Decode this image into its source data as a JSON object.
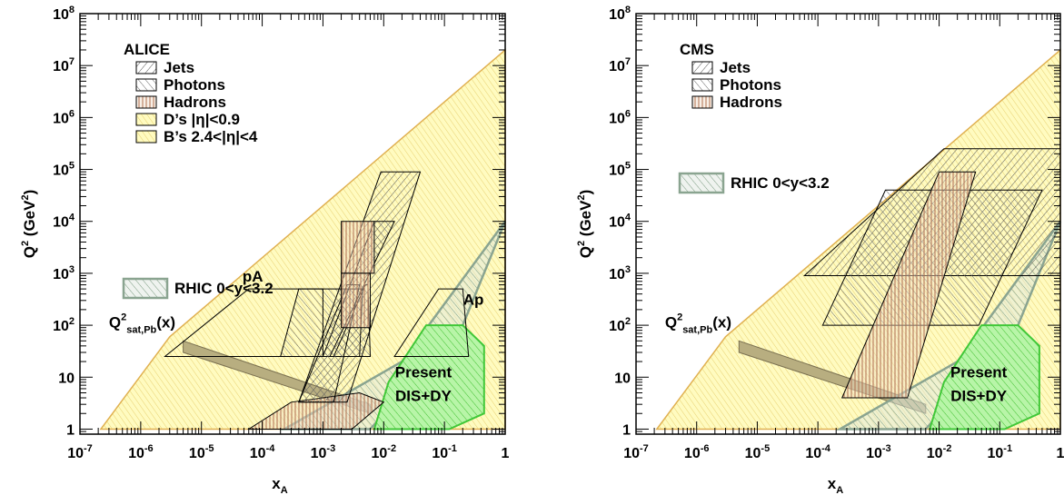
{
  "chart_data": [
    {
      "type": "area",
      "panel": "left",
      "xlabel": "x",
      "xlabel_sub": "A",
      "ylabel": "Q",
      "ylabel_sup": "2",
      "ylabel_unit": "(GeV",
      "ylabel_unit_sup": "2",
      "ylabel_unit_close": ")",
      "x_scale": "log",
      "y_scale": "log",
      "xlim": [
        1e-07,
        1
      ],
      "ylim": [
        0.8,
        100000000.0
      ],
      "xticks": [
        {
          "value": 1e-07,
          "base": "10",
          "exp": "-7"
        },
        {
          "value": 1e-06,
          "base": "10",
          "exp": "-6"
        },
        {
          "value": 1e-05,
          "base": "10",
          "exp": "-5"
        },
        {
          "value": 0.0001,
          "base": "10",
          "exp": "-4"
        },
        {
          "value": 0.001,
          "base": "10",
          "exp": "-3"
        },
        {
          "value": 0.01,
          "base": "10",
          "exp": "-2"
        },
        {
          "value": 0.1,
          "base": "10",
          "exp": "-1"
        },
        {
          "value": 1,
          "base": "1",
          "exp": ""
        }
      ],
      "yticks": [
        {
          "value": 1,
          "base": "1",
          "exp": ""
        },
        {
          "value": 10,
          "base": "10",
          "exp": ""
        },
        {
          "value": 100,
          "base": "10",
          "exp": "2"
        },
        {
          "value": 1000,
          "base": "10",
          "exp": "3"
        },
        {
          "value": 10000,
          "base": "10",
          "exp": "4"
        },
        {
          "value": 100000,
          "base": "10",
          "exp": "5"
        },
        {
          "value": 1000000,
          "base": "10",
          "exp": "6"
        },
        {
          "value": 10000000,
          "base": "10",
          "exp": "7"
        },
        {
          "value": 100000000,
          "base": "10",
          "exp": "8"
        }
      ],
      "legend": {
        "title": "ALICE",
        "entries": [
          {
            "label": "Jets",
            "hatch": "back",
            "color": "#555555",
            "fill": "none"
          },
          {
            "label": "Photons",
            "hatch": "fwd",
            "color": "#555555",
            "fill": "none"
          },
          {
            "label": "Hadrons",
            "hatch": "vert",
            "color": "#a0522d",
            "fill": "none"
          },
          {
            "label": "D’s |η|<0.9",
            "hatch": "fwd",
            "color": "#c8b94a",
            "fill": "#f8f4b8"
          },
          {
            "label": "B’s 2.4<|η|<4",
            "hatch": "fwd",
            "color": "#d8c050",
            "fill": "#ffff99"
          }
        ]
      },
      "rhic_label": "RHIC 0<y<3.2",
      "annotations": [
        {
          "text": "pA",
          "x": 7e-05,
          "y": 700
        },
        {
          "text": "Ap",
          "x": 0.3,
          "y": 250
        },
        {
          "text": "Present",
          "x": 0.045,
          "y": 10
        },
        {
          "text": "DIS+DY",
          "x": 0.045,
          "y": 3.5
        }
      ],
      "qsat_label": {
        "main": "Q",
        "sup": "2",
        "sub": "sat,Pb",
        "tail": "(x)",
        "x": 3e-07,
        "y": 90
      },
      "regions": [
        {
          "name": "lhc-kinematic-yellow",
          "style": "yellow",
          "points": [
            [
              2.2e-07,
              1
            ],
            [
              1,
              1
            ],
            [
              1,
              20000000.0
            ],
            [
              3e-06,
              60
            ],
            [
              2.2e-07,
              1
            ]
          ]
        },
        {
          "name": "qsat-band",
          "style": "band",
          "points": [
            [
              5e-06,
              50
            ],
            [
              0.006,
              3
            ],
            [
              0.006,
              2
            ],
            [
              5e-06,
              30
            ]
          ]
        },
        {
          "name": "rhic-region",
          "style": "rhic",
          "points": [
            [
              0.00023,
              1
            ],
            [
              0.006,
              1
            ],
            [
              0.2,
              100
            ],
            [
              1,
              10000
            ],
            [
              0.02,
              20
            ],
            [
              0.00023,
              1
            ]
          ]
        },
        {
          "name": "present-dis-dy",
          "style": "green",
          "points": [
            [
              0.007,
              1
            ],
            [
              0.12,
              1
            ],
            [
              0.45,
              2
            ],
            [
              0.45,
              40
            ],
            [
              0.2,
              100
            ],
            [
              0.05,
              100
            ],
            [
              0.012,
              8
            ]
          ]
        },
        {
          "name": "hadrons-lower",
          "style": "hadron",
          "points": [
            [
              6e-05,
              1
            ],
            [
              0.003,
              1
            ],
            [
              0.01,
              3.3
            ],
            [
              0.004,
              5
            ],
            [
              0.0003,
              3.3
            ]
          ]
        },
        {
          "name": "jets-pa-bands",
          "style": "jets",
          "points": [
            [
              0.0004,
              3.3
            ],
            [
              0.0025,
              3.3
            ],
            [
              0.04,
              90000
            ],
            [
              0.009,
              90000
            ]
          ]
        },
        {
          "name": "photons-pa-1",
          "style": "photons",
          "points": [
            [
              0.0002,
              25
            ],
            [
              0.004,
              25
            ],
            [
              0.0045,
              500
            ],
            [
              0.0004,
              500
            ]
          ]
        },
        {
          "name": "photons-pa-2",
          "style": "photons",
          "points": [
            [
              0.001,
              25
            ],
            [
              0.0013,
              25
            ],
            [
              0.015,
              10000
            ],
            [
              0.007,
              10000
            ]
          ]
        },
        {
          "name": "photons-pa-3",
          "style": "photons",
          "points": [
            [
              0.0015,
              25
            ],
            [
              0.006,
              25
            ],
            [
              0.0055,
              600
            ],
            [
              0.005,
              600
            ]
          ]
        },
        {
          "name": "photons-box-1",
          "style": "photons",
          "points": [
            [
              0.0004,
              3.3
            ],
            [
              0.0015,
              3.3
            ],
            [
              0.004,
              600
            ],
            [
              0.0025,
              600
            ]
          ]
        },
        {
          "name": "hadrons-box-1",
          "style": "hadron",
          "points": [
            [
              0.002,
              1000
            ],
            [
              0.007,
              1000
            ],
            [
              0.007,
              10000
            ],
            [
              0.002,
              10000
            ]
          ]
        },
        {
          "name": "hadrons-box-2",
          "style": "hadron",
          "points": [
            [
              0.002,
              90
            ],
            [
              0.006,
              90
            ],
            [
              0.006,
              1000
            ],
            [
              0.002,
              1000
            ]
          ]
        },
        {
          "name": "pa-outline",
          "style": "outline",
          "points": [
            [
              2.5e-06,
              25
            ],
            [
              0.00025,
              25
            ],
            [
              0.001,
              25
            ],
            [
              0.001,
              500
            ],
            [
              6e-05,
              500
            ]
          ]
        },
        {
          "name": "ap-outline",
          "style": "outline",
          "points": [
            [
              0.015,
              25
            ],
            [
              0.25,
              25
            ],
            [
              0.2,
              500
            ],
            [
              0.08,
              500
            ]
          ]
        }
      ]
    },
    {
      "type": "area",
      "panel": "right",
      "xlabel": "x",
      "xlabel_sub": "A",
      "ylabel": "Q",
      "ylabel_sup": "2",
      "ylabel_unit": "(GeV",
      "ylabel_unit_sup": "2",
      "ylabel_unit_close": ")",
      "x_scale": "log",
      "y_scale": "log",
      "xlim": [
        1e-07,
        1
      ],
      "ylim": [
        0.8,
        100000000.0
      ],
      "xticks": [
        {
          "value": 1e-07,
          "base": "10",
          "exp": "-7"
        },
        {
          "value": 1e-06,
          "base": "10",
          "exp": "-6"
        },
        {
          "value": 1e-05,
          "base": "10",
          "exp": "-5"
        },
        {
          "value": 0.0001,
          "base": "10",
          "exp": "-4"
        },
        {
          "value": 0.001,
          "base": "10",
          "exp": "-3"
        },
        {
          "value": 0.01,
          "base": "10",
          "exp": "-2"
        },
        {
          "value": 0.1,
          "base": "10",
          "exp": "-1"
        },
        {
          "value": 1,
          "base": "1",
          "exp": ""
        }
      ],
      "yticks": [
        {
          "value": 1,
          "base": "1",
          "exp": ""
        },
        {
          "value": 10,
          "base": "10",
          "exp": ""
        },
        {
          "value": 100,
          "base": "10",
          "exp": "2"
        },
        {
          "value": 1000,
          "base": "10",
          "exp": "3"
        },
        {
          "value": 10000,
          "base": "10",
          "exp": "4"
        },
        {
          "value": 100000,
          "base": "10",
          "exp": "5"
        },
        {
          "value": 1000000,
          "base": "10",
          "exp": "6"
        },
        {
          "value": 10000000,
          "base": "10",
          "exp": "7"
        },
        {
          "value": 100000000,
          "base": "10",
          "exp": "8"
        }
      ],
      "legend": {
        "title": "CMS",
        "entries": [
          {
            "label": "Jets",
            "hatch": "back",
            "color": "#555555",
            "fill": "none"
          },
          {
            "label": "Photons",
            "hatch": "fwd",
            "color": "#555555",
            "fill": "none"
          },
          {
            "label": "Hadrons",
            "hatch": "vert",
            "color": "#a0522d",
            "fill": "#e8d0c8"
          }
        ]
      },
      "rhic_label": "RHIC 0<y<3.2",
      "annotations": [
        {
          "text": "Present",
          "x": 0.045,
          "y": 10
        },
        {
          "text": "DIS+DY",
          "x": 0.045,
          "y": 3.5
        }
      ],
      "qsat_label": {
        "main": "Q",
        "sup": "2",
        "sub": "sat,Pb",
        "tail": "(x)",
        "x": 3e-07,
        "y": 90
      },
      "regions": [
        {
          "name": "lhc-kinematic-yellow",
          "style": "yellow",
          "points": [
            [
              2.2e-07,
              1
            ],
            [
              1,
              1
            ],
            [
              1,
              20000000.0
            ],
            [
              3e-06,
              60
            ],
            [
              2.2e-07,
              1
            ]
          ]
        },
        {
          "name": "qsat-band",
          "style": "band",
          "points": [
            [
              5e-06,
              50
            ],
            [
              0.006,
              3
            ],
            [
              0.006,
              2
            ],
            [
              5e-06,
              30
            ]
          ]
        },
        {
          "name": "rhic-region",
          "style": "rhic",
          "points": [
            [
              0.00023,
              1
            ],
            [
              0.006,
              1
            ],
            [
              0.2,
              100
            ],
            [
              1,
              10000
            ],
            [
              0.02,
              20
            ],
            [
              0.00023,
              1
            ]
          ]
        },
        {
          "name": "present-dis-dy",
          "style": "green",
          "points": [
            [
              0.007,
              1
            ],
            [
              0.12,
              1
            ],
            [
              0.45,
              2
            ],
            [
              0.45,
              40
            ],
            [
              0.2,
              100
            ],
            [
              0.05,
              100
            ],
            [
              0.012,
              8
            ]
          ]
        },
        {
          "name": "jets-box",
          "style": "jets",
          "points": [
            [
              6e-05,
              900
            ],
            [
              1,
              900
            ],
            [
              1,
              250000
            ],
            [
              0.012,
              250000
            ]
          ]
        },
        {
          "name": "photons-box",
          "style": "photons",
          "points": [
            [
              0.00012,
              100
            ],
            [
              0.045,
              100
            ],
            [
              0.5,
              40000
            ],
            [
              0.0013,
              40000
            ]
          ]
        },
        {
          "name": "hadrons-box",
          "style": "hadron",
          "points": [
            [
              0.00025,
              4
            ],
            [
              0.003,
              4
            ],
            [
              0.04,
              90000
            ],
            [
              0.01,
              90000
            ]
          ]
        }
      ]
    }
  ]
}
